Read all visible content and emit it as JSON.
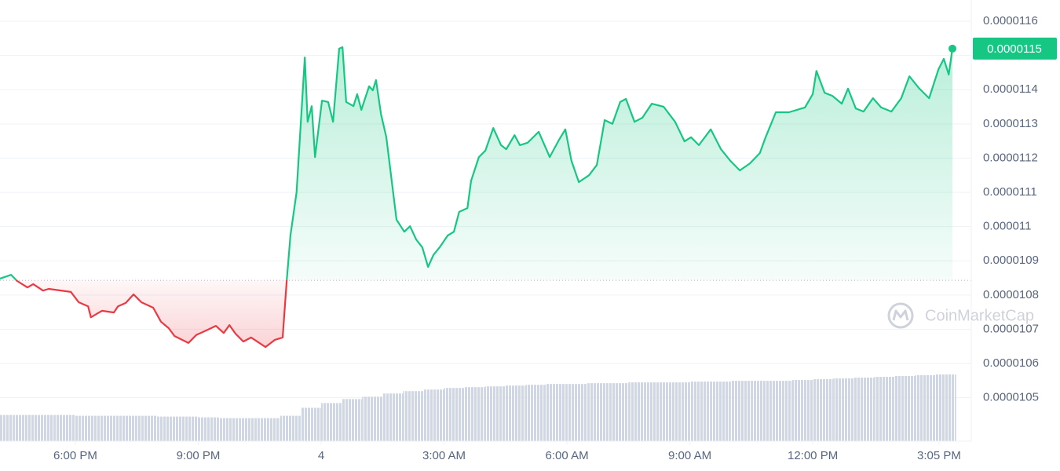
{
  "chart_data": {
    "type": "line",
    "x": [
      16.16,
      16.43,
      16.58,
      16.83,
      16.97,
      17.21,
      17.35,
      17.89,
      18.08,
      18.31,
      18.38,
      18.65,
      18.94,
      19.04,
      19.23,
      19.42,
      19.61,
      19.9,
      20.09,
      20.28,
      20.42,
      20.76,
      20.95,
      21.24,
      21.43,
      21.62,
      21.76,
      21.91,
      22.1,
      22.29,
      22.64,
      22.87,
      23.06,
      23.16,
      23.25,
      23.4,
      23.6,
      23.67,
      23.77,
      23.85,
      24.02,
      24.17,
      24.29,
      24.44,
      24.52,
      24.61,
      24.79,
      24.88,
      24.98,
      25.17,
      25.26,
      25.34,
      25.46,
      25.59,
      25.84,
      26.03,
      26.17,
      26.32,
      26.47,
      26.61,
      26.74,
      26.89,
      27.09,
      27.24,
      27.37,
      27.57,
      27.66,
      27.85,
      28.01,
      28.2,
      28.39,
      28.52,
      28.72,
      28.85,
      29.04,
      29.31,
      29.58,
      29.81,
      29.96,
      30.11,
      30.29,
      30.54,
      30.73,
      30.92,
      31.11,
      31.3,
      31.44,
      31.65,
      31.84,
      32.07,
      32.36,
      32.64,
      32.87,
      33.03,
      33.22,
      33.51,
      33.76,
      33.99,
      34.22,
      34.47,
      34.71,
      34.85,
      35.1,
      35.42,
      35.81,
      36.0,
      36.09,
      36.29,
      36.48,
      36.71,
      36.86,
      37.05,
      37.24,
      37.47,
      37.67,
      37.92,
      38.16,
      38.36,
      38.59,
      38.84,
      39.07,
      39.2,
      39.32,
      39.41
    ],
    "values": [
      1.0848e-05,
      1.0859e-05,
      1.0841e-05,
      1.0822e-05,
      1.0832e-05,
      1.0813e-05,
      1.0818e-05,
      1.0809e-05,
      1.0779e-05,
      1.0767e-05,
      1.0735e-05,
      1.0754e-05,
      1.0749e-05,
      1.0767e-05,
      1.0777e-05,
      1.0802e-05,
      1.0779e-05,
      1.0763e-05,
      1.0722e-05,
      1.0703e-05,
      1.068e-05,
      1.066e-05,
      1.0683e-05,
      1.0699e-05,
      1.071e-05,
      1.0689e-05,
      1.0712e-05,
      1.0687e-05,
      1.0664e-05,
      1.0676e-05,
      1.0648e-05,
      1.0669e-05,
      1.0676e-05,
      1.0843e-05,
      1.0974e-05,
      1.11e-05,
      1.1494e-05,
      1.1306e-05,
      1.1352e-05,
      1.1203e-05,
      1.1368e-05,
      1.1364e-05,
      1.1306e-05,
      1.152e-05,
      1.1524e-05,
      1.1364e-05,
      1.1352e-05,
      1.1387e-05,
      1.1341e-05,
      1.141e-05,
      1.1398e-05,
      1.1428e-05,
      1.1329e-05,
      1.1261e-05,
      1.102e-05,
      1.0985e-05,
      1.1001e-05,
      1.0962e-05,
      1.0939e-05,
      1.0882e-05,
      1.0917e-05,
      1.0939e-05,
      1.0974e-05,
      1.0985e-05,
      1.1043e-05,
      1.1054e-05,
      1.1134e-05,
      1.1203e-05,
      1.1222e-05,
      1.1288e-05,
      1.1238e-05,
      1.1226e-05,
      1.1267e-05,
      1.1238e-05,
      1.1245e-05,
      1.1277e-05,
      1.1203e-05,
      1.1254e-05,
      1.1284e-05,
      1.1192e-05,
      1.113e-05,
      1.115e-05,
      1.118e-05,
      1.1311e-05,
      1.13e-05,
      1.1364e-05,
      1.1373e-05,
      1.1306e-05,
      1.1318e-05,
      1.1359e-05,
      1.135e-05,
      1.1306e-05,
      1.1249e-05,
      1.1261e-05,
      1.1238e-05,
      1.1284e-05,
      1.1226e-05,
      1.1192e-05,
      1.1164e-05,
      1.1185e-05,
      1.1215e-05,
      1.1261e-05,
      1.1334e-05,
      1.1334e-05,
      1.1348e-05,
      1.1387e-05,
      1.1455e-05,
      1.1391e-05,
      1.1382e-05,
      1.1359e-05,
      1.1403e-05,
      1.1345e-05,
      1.1336e-05,
      1.1375e-05,
      1.1348e-05,
      1.1336e-05,
      1.1375e-05,
      1.1439e-05,
      1.1405e-05,
      1.1375e-05,
      1.146e-05,
      1.149e-05,
      1.1444e-05,
      1.152e-05
    ],
    "baseline": 1.0843e-05,
    "up_color": "#16c784",
    "down_color": "#ea3943",
    "last_label": "0.0000115",
    "xlim": [
      16.16,
      39.87
    ],
    "xticks": [
      {
        "value": 18,
        "label": "6:00 PM"
      },
      {
        "value": 21,
        "label": "9:00 PM"
      },
      {
        "value": 24,
        "label": "4"
      },
      {
        "value": 27,
        "label": "3:00 AM"
      },
      {
        "value": 30,
        "label": "6:00 AM"
      },
      {
        "value": 33,
        "label": "9:00 AM"
      },
      {
        "value": 36,
        "label": "12:00 PM"
      },
      {
        "value": 39.083,
        "label": "3:05 PM"
      }
    ],
    "ylim": [
      1.0373e-05,
      1.1662e-05
    ],
    "yticks": [
      1.05e-05,
      1.06e-05,
      1.07e-05,
      1.08e-05,
      1.09e-05,
      1.1e-05,
      1.11e-05,
      1.12e-05,
      1.13e-05,
      1.14e-05,
      1.15e-05,
      1.16e-05
    ],
    "grid": true,
    "volume": {
      "color": "#cfd6e4",
      "x": [
        16.25,
        16.75,
        17.25,
        17.75,
        18.25,
        18.75,
        19.25,
        19.75,
        20.25,
        20.75,
        21.25,
        21.75,
        22.25,
        22.75,
        23.25,
        23.75,
        24.25,
        24.75,
        25.25,
        25.75,
        26.25,
        26.75,
        27.25,
        27.75,
        28.25,
        28.75,
        29.25,
        29.75,
        30.25,
        30.75,
        31.25,
        31.75,
        32.25,
        32.75,
        33.25,
        33.75,
        34.25,
        34.75,
        35.25,
        35.75,
        36.25,
        36.75,
        37.25,
        37.75,
        38.25,
        38.75,
        39.25
      ],
      "values": [
        33,
        33,
        33,
        33,
        32,
        32,
        32,
        32,
        31,
        31,
        30,
        29,
        29,
        29,
        32,
        42,
        48,
        53,
        56,
        60,
        63,
        65,
        67,
        68,
        69,
        70,
        71,
        72,
        72,
        73,
        73,
        74,
        74,
        74,
        75,
        75,
        76,
        76,
        76,
        77,
        78,
        79,
        80,
        81,
        82,
        83,
        84
      ]
    },
    "watermark": "CoinMarketCap"
  }
}
